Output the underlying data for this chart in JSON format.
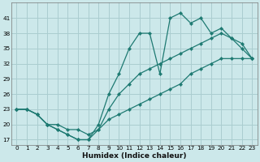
{
  "xlabel": "Humidex (Indice chaleur)",
  "bg_color": "#cce8ea",
  "grid_color": "#aacdd0",
  "line_color": "#1e7a72",
  "line1_x": [
    0,
    1,
    2,
    3,
    4,
    5,
    6,
    7,
    8,
    9,
    10,
    11,
    12,
    13,
    14,
    15,
    16,
    17,
    18,
    19,
    20,
    21,
    22,
    23
  ],
  "line1_y": [
    23,
    23,
    22,
    20,
    19,
    18,
    17,
    17,
    20,
    26,
    30,
    35,
    38,
    38,
    30,
    41,
    42,
    40,
    41,
    38,
    39,
    37,
    36,
    33
  ],
  "line2_x": [
    0,
    1,
    2,
    3,
    4,
    5,
    6,
    7,
    8,
    9,
    10,
    11,
    12,
    13,
    14,
    15,
    16,
    17,
    18,
    19,
    20,
    21,
    22,
    23
  ],
  "line2_y": [
    23,
    23,
    22,
    20,
    19,
    18,
    17,
    17,
    19,
    23,
    26,
    28,
    30,
    31,
    32,
    33,
    34,
    35,
    36,
    37,
    38,
    37,
    35,
    33
  ],
  "line3_x": [
    0,
    1,
    2,
    3,
    4,
    5,
    6,
    7,
    8,
    9,
    10,
    11,
    12,
    13,
    14,
    15,
    16,
    17,
    18,
    19,
    20,
    21,
    22,
    23
  ],
  "line3_y": [
    23,
    23,
    22,
    20,
    20,
    19,
    19,
    18,
    19,
    21,
    22,
    23,
    24,
    25,
    26,
    27,
    28,
    30,
    31,
    32,
    33,
    33,
    33,
    33
  ],
  "ylim": [
    16,
    44
  ],
  "xlim": [
    -0.5,
    23.5
  ],
  "yticks": [
    17,
    20,
    23,
    26,
    29,
    32,
    35,
    38,
    41
  ],
  "xticks": [
    0,
    1,
    2,
    3,
    4,
    5,
    6,
    7,
    8,
    9,
    10,
    11,
    12,
    13,
    14,
    15,
    16,
    17,
    18,
    19,
    20,
    21,
    22,
    23
  ],
  "ylabel_fontsize": 6,
  "xlabel_fontsize": 6.5,
  "tick_fontsize": 5.2
}
